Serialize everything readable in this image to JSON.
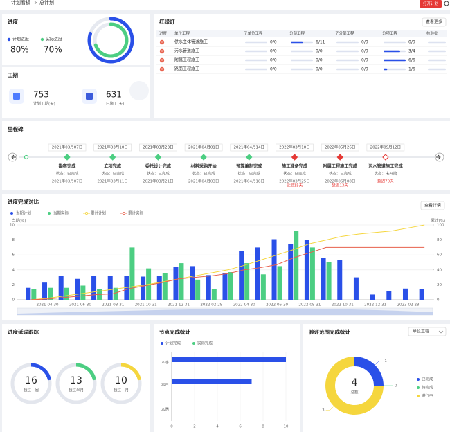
{
  "header": {
    "breadcrumb": [
      "计划看板",
      "总计划"
    ],
    "button": "打开计划"
  },
  "progress": {
    "title": "进度",
    "series": [
      {
        "name": "计划进度",
        "value": 80,
        "value_label": "80%",
        "color": "#2a50e8"
      },
      {
        "name": "实际进度",
        "value": 70,
        "value_label": "70%",
        "color": "#4cce82"
      }
    ]
  },
  "duration": {
    "title": "工期",
    "items": [
      {
        "value": 753,
        "label": "计划工期(天)"
      },
      {
        "value": 631,
        "label": "已施工(天)"
      }
    ]
  },
  "traffic": {
    "title": "红绿灯",
    "button": "查看更多",
    "columns": [
      "进度",
      "单位工程",
      "子单位工程",
      "分部工程",
      "子分部工程",
      "分项工程",
      "检验批"
    ],
    "rows": [
      {
        "unit": "供水主体管道施工",
        "cells": [
          {
            "label": "0/0",
            "done": 0,
            "total": 0
          },
          {
            "label": "6/11",
            "done": 6,
            "total": 11
          },
          {
            "label": "0/0",
            "done": 0,
            "total": 0
          },
          {
            "label": "0/0",
            "done": 0,
            "total": 0
          }
        ]
      },
      {
        "unit": "污水管道施工",
        "cells": [
          {
            "label": "0/0",
            "done": 0,
            "total": 0
          },
          {
            "label": "0/0",
            "done": 0,
            "total": 0
          },
          {
            "label": "0/0",
            "done": 0,
            "total": 0
          },
          {
            "label": "3/4",
            "done": 3,
            "total": 4
          }
        ]
      },
      {
        "unit": "附属工程施工",
        "cells": [
          {
            "label": "0/0",
            "done": 0,
            "total": 0
          },
          {
            "label": "0/0",
            "done": 0,
            "total": 0
          },
          {
            "label": "0/0",
            "done": 0,
            "total": 0
          },
          {
            "label": "6/6",
            "done": 6,
            "total": 6
          }
        ]
      },
      {
        "unit": "路面工程施工",
        "cells": [
          {
            "label": "0/0",
            "done": 0,
            "total": 0
          },
          {
            "label": "0/0",
            "done": 0,
            "total": 0
          },
          {
            "label": "0/0",
            "done": 0,
            "total": 0
          },
          {
            "label": "1/6",
            "done": 1,
            "total": 6
          }
        ]
      }
    ]
  },
  "milestones": {
    "title": "里程碑",
    "items": [
      {
        "plan_date": "2021年03月07日",
        "name": "勘察完成",
        "status": "状态：已完成",
        "actual_date": "2021年03月07日"
      },
      {
        "plan_date": "2021年03月10日",
        "name": "立项完成",
        "status": "状态：已完成",
        "actual_date": "2021年03月11日"
      },
      {
        "plan_date": "2021年03月23日",
        "name": "委托设计完成",
        "status": "状态：已完成",
        "actual_date": "2021年03月21日"
      },
      {
        "plan_date": "2021年04月01日",
        "name": "材料采购开始",
        "status": "状态：已完成",
        "actual_date": "2021年04月03日"
      },
      {
        "plan_date": "2021年04月14日",
        "name": "预算编制完成",
        "status": "状态：已完成",
        "actual_date": "2021年04月18日"
      },
      {
        "plan_date": "2022年03月10日",
        "name": "施工准备完成",
        "status": "状态：已完成",
        "actual_date": "2022年03月25日",
        "delay": "延迟15天"
      },
      {
        "plan_date": "2022年05月26日",
        "name": "附属工程施工完成",
        "status": "状态：已完成",
        "actual_date": "2022年06月08日",
        "delay": "延迟13天"
      },
      {
        "plan_date": "2022年09月12日",
        "name": "污水管道施工完成",
        "status": "状态：未开始",
        "delay": "延迟70天"
      }
    ]
  },
  "delay": {
    "title": "进度延误跟踪",
    "items": [
      {
        "value": 16,
        "label": "超过一周"
      },
      {
        "value": 13,
        "label": "超过半月"
      },
      {
        "value": 10,
        "label": "超过一月"
      }
    ]
  },
  "chart_data": [
    {
      "type": "bar_line",
      "title": "进度完成对比",
      "button": "查看详情",
      "y_label": "当期(%)",
      "y2_label": "累计(%)",
      "categories": [
        null,
        "2021-04-30",
        null,
        "2021-06-30",
        null,
        "2021-08-31",
        null,
        "2021-10-31",
        null,
        "2021-12-31",
        null,
        "2022-02-28",
        null,
        "2022-04-30",
        null,
        "2022-06-30",
        null,
        "2022-08-31",
        null,
        "2022-10-31",
        null,
        "2022-12-31",
        null,
        "2023-02-28",
        null
      ],
      "series": [
        {
          "name": "当期计划",
          "type": "bar",
          "color": "#2a50e8",
          "values": [
            1.6,
            2.3,
            3.2,
            2.8,
            3.2,
            3.2,
            3.2,
            3.1,
            3.2,
            4.4,
            4.5,
            3.3,
            3.6,
            6.5,
            7.0,
            8.1,
            7.5,
            8.0,
            5.6,
            5.3,
            3.0,
            0.7,
            1.2,
            1.5,
            1.4
          ]
        },
        {
          "name": "当期实际",
          "type": "bar",
          "color": "#4cce82",
          "values": [
            1.4,
            1.6,
            1.6,
            1.9,
            1.4,
            1.6,
            7.0,
            4.2,
            3.6,
            4.9,
            2.7,
            1.4,
            3.7,
            4.9,
            3.4,
            4.5,
            9.2,
            7.0,
            5.0,
            0,
            0,
            0,
            0,
            0,
            0
          ]
        },
        {
          "name": "累计计划",
          "type": "line",
          "axis": "y2",
          "color": "#f5d63d",
          "values": [
            0,
            2,
            5,
            8,
            11,
            14,
            17,
            20,
            24,
            28,
            32,
            36,
            40,
            46,
            53,
            60,
            67,
            75,
            80,
            85,
            88,
            90,
            92,
            96,
            100
          ]
        },
        {
          "name": "累计实际",
          "type": "line",
          "axis": "y2",
          "color": "#e8604c",
          "values": [
            0,
            1,
            3,
            5,
            7,
            8,
            15,
            19,
            23,
            28,
            30,
            32,
            35,
            40,
            43,
            47,
            56,
            63,
            70,
            70,
            70,
            70,
            70,
            70,
            70
          ]
        }
      ],
      "ylim": [
        0,
        10
      ],
      "yticks": [
        0,
        2,
        4,
        6,
        8,
        10
      ],
      "y2lim": [
        0,
        100
      ],
      "y2ticks": [
        0,
        20,
        40,
        60,
        80,
        100
      ],
      "grid": true
    },
    {
      "type": "hbar",
      "title": "节点完成统计",
      "categories": [
        "本季",
        "本月",
        "本周"
      ],
      "series": [
        {
          "name": "计划完成",
          "color": "#2a50e8",
          "values": [
            10,
            7,
            0
          ]
        },
        {
          "name": "实际完成",
          "color": "#4cce82",
          "values": [
            0,
            0,
            0
          ]
        }
      ],
      "xlim": [
        0,
        10
      ],
      "xticks": [
        0,
        2,
        4,
        6,
        8,
        10
      ],
      "grid": true
    },
    {
      "type": "donut",
      "title": "验评范围完成统计",
      "dropdown": "单位工程",
      "categories": [
        "已完成",
        "待完成",
        "进行中"
      ],
      "values": [
        1,
        0,
        3
      ],
      "colors": [
        "#2a50e8",
        "#4cce82",
        "#f5d63d"
      ],
      "total": 4,
      "total_label": "总数"
    }
  ]
}
